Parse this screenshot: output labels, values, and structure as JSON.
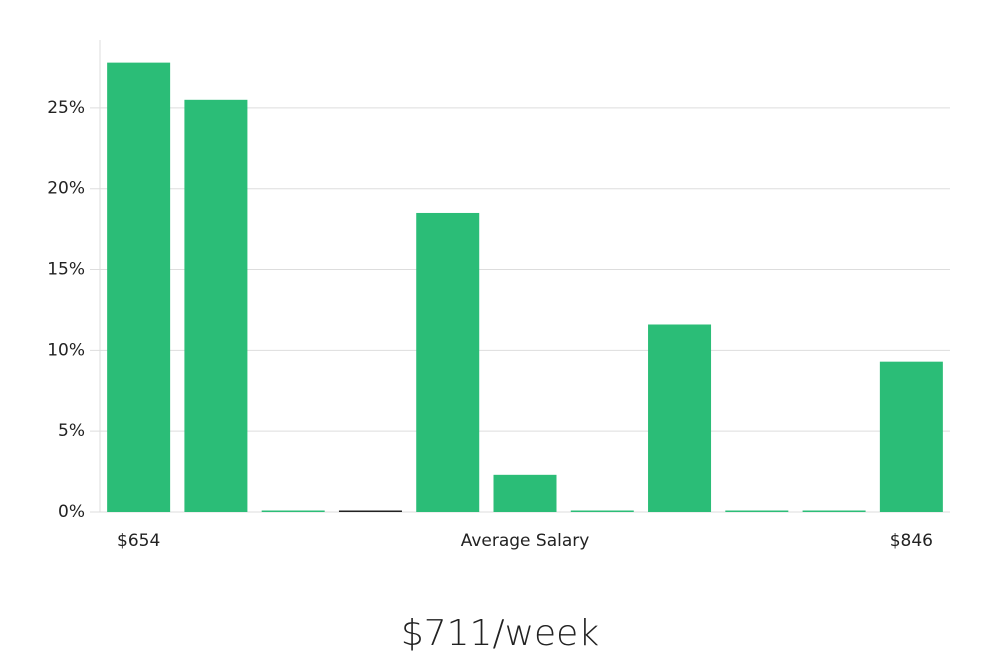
{
  "chart_data": {
    "type": "bar",
    "categories": [
      "$654",
      null,
      null,
      null,
      null,
      null,
      null,
      null,
      null,
      null,
      "$846"
    ],
    "values": [
      27.8,
      25.5,
      0,
      0,
      18.5,
      2.3,
      0,
      11.6,
      0,
      0,
      9.3
    ],
    "colors": [
      "#2bbd77",
      "#2bbd77",
      "#2bbd77",
      "#222222",
      "#2bbd77",
      "#2bbd77",
      "#2bbd77",
      "#2bbd77",
      "#2bbd77",
      "#2bbd77",
      "#2bbd77"
    ],
    "xlabel": "Average Salary",
    "footer": "$711/week",
    "ylim": [
      0,
      29.2
    ],
    "yticks": [
      {
        "value": 0,
        "label": "0%"
      },
      {
        "value": 5,
        "label": "5%"
      },
      {
        "value": 10,
        "label": "10%"
      },
      {
        "value": 15,
        "label": "15%"
      },
      {
        "value": 20,
        "label": "20%"
      },
      {
        "value": 25,
        "label": "25%"
      }
    ],
    "grid": true
  }
}
